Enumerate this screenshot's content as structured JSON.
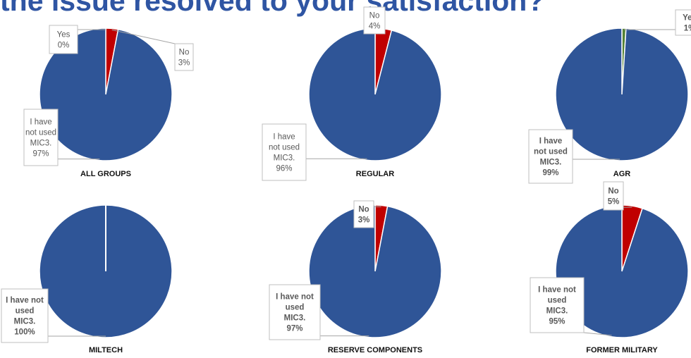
{
  "title": "the issue resolved to your satisfaction?",
  "colors": {
    "yes": "#548235",
    "no": "#c00000",
    "not_used": "#2f5597",
    "title": "#2f55a3"
  },
  "chart_data": [
    {
      "type": "pie",
      "title": "ALL GROUPS",
      "slices": [
        {
          "name": "Yes",
          "value": 0,
          "label": [
            "Yes",
            "0%"
          ]
        },
        {
          "name": "No",
          "value": 3,
          "label": [
            "No",
            "3%"
          ]
        },
        {
          "name": "I have not used MIC3.",
          "value": 97,
          "label": [
            "I have",
            "not used",
            "MIC3.",
            "97%"
          ]
        }
      ]
    },
    {
      "type": "pie",
      "title": "REGULAR",
      "slices": [
        {
          "name": "No",
          "value": 4,
          "label": [
            "No",
            "4%"
          ]
        },
        {
          "name": "I have not used MIC3.",
          "value": 96,
          "label": [
            "I have",
            "not used",
            "MIC3.",
            "96%"
          ]
        }
      ]
    },
    {
      "type": "pie",
      "title": "AGR",
      "slices": [
        {
          "name": "Yes",
          "value": 1,
          "label": [
            "Yes",
            "1%"
          ]
        },
        {
          "name": "I have not used MIC3.",
          "value": 99,
          "label": [
            "I have",
            "not used",
            "MIC3.",
            "99%"
          ]
        }
      ]
    },
    {
      "type": "pie",
      "title": "MILTECH",
      "slices": [
        {
          "name": "I have not used MIC3.",
          "value": 100,
          "label": [
            "I have not",
            "used",
            "MIC3.",
            "100%"
          ]
        }
      ]
    },
    {
      "type": "pie",
      "title": "RESERVE COMPONENTS",
      "slices": [
        {
          "name": "No",
          "value": 3,
          "label": [
            "No",
            "3%"
          ]
        },
        {
          "name": "I have not used MIC3.",
          "value": 97,
          "label": [
            "I have not",
            "used",
            "MIC3.",
            "97%"
          ]
        }
      ]
    },
    {
      "type": "pie",
      "title": "FORMER MILITARY",
      "slices": [
        {
          "name": "No",
          "value": 5,
          "label": [
            "No",
            "5%"
          ]
        },
        {
          "name": "I have not used MIC3.",
          "value": 95,
          "label": [
            "I have not",
            "used",
            "MIC3.",
            "95%"
          ]
        }
      ]
    }
  ]
}
